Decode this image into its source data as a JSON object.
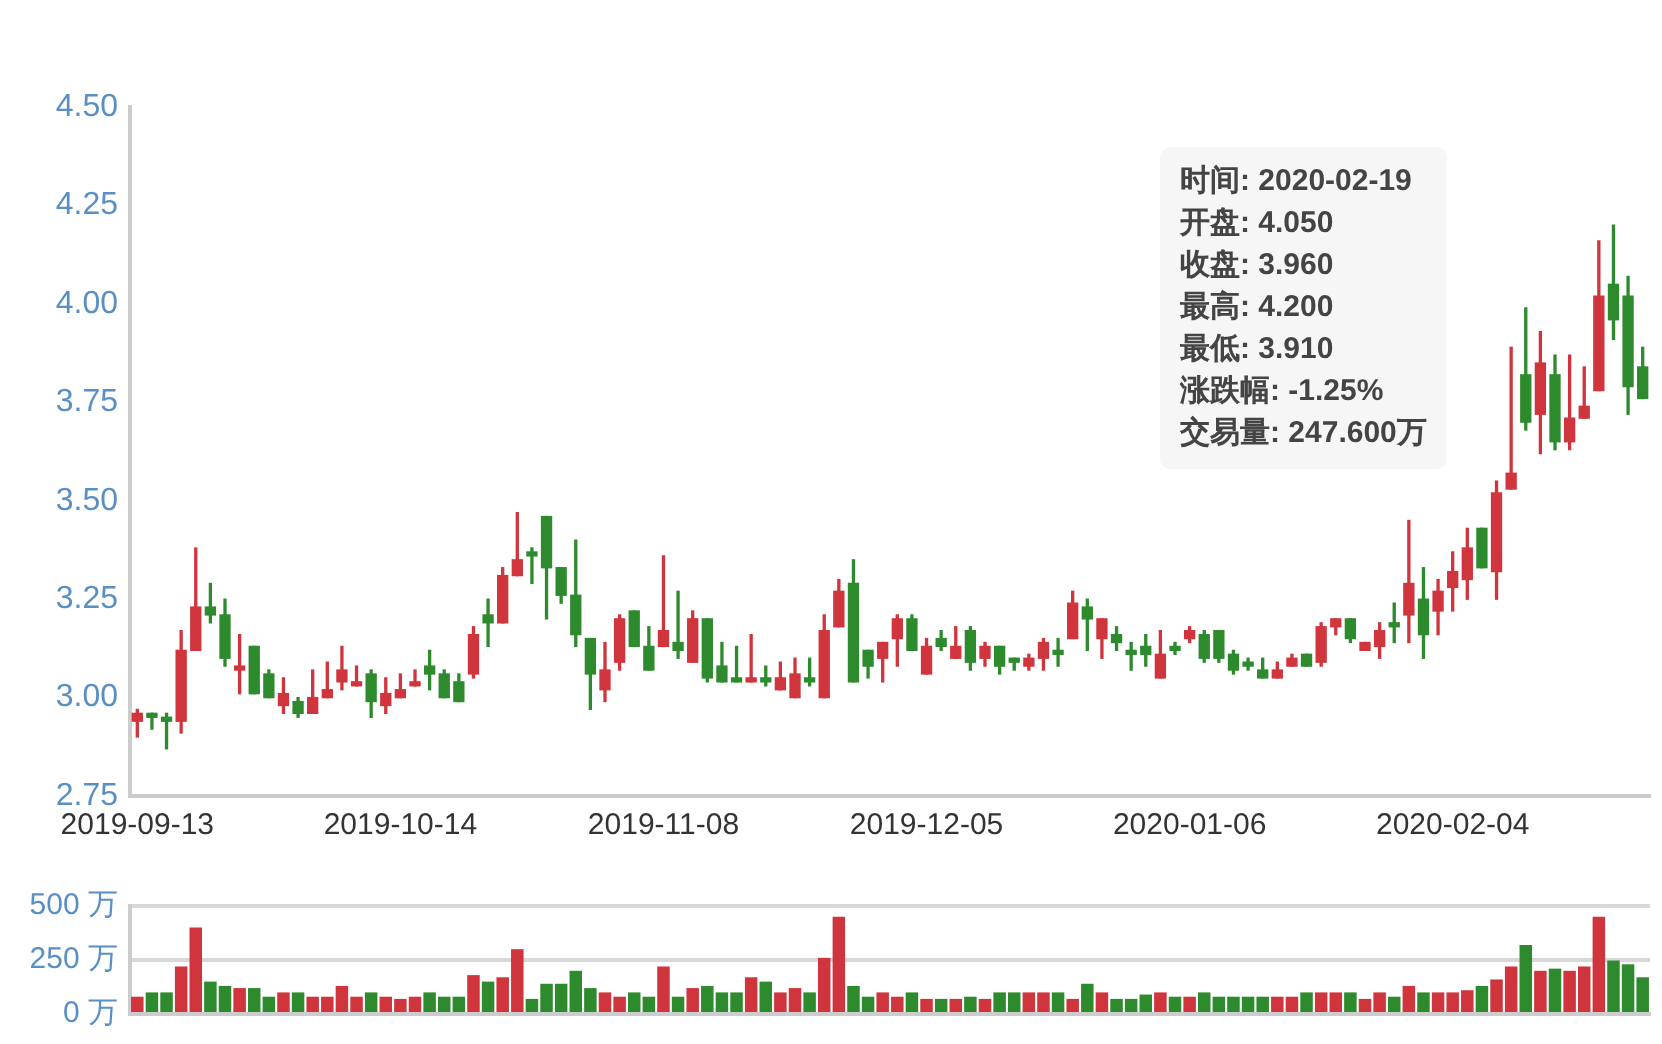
{
  "chart_data": [
    {
      "type": "candlestick",
      "categories": [
        "2019-09-13",
        null,
        null,
        null,
        null,
        null,
        null,
        null,
        null,
        null,
        null,
        null,
        null,
        null,
        null,
        null,
        null,
        null,
        "2019-10-14",
        null,
        null,
        null,
        null,
        null,
        null,
        null,
        null,
        null,
        null,
        null,
        null,
        null,
        null,
        null,
        null,
        null,
        "2019-11-08",
        null,
        null,
        null,
        null,
        null,
        null,
        null,
        null,
        null,
        null,
        null,
        null,
        null,
        null,
        null,
        null,
        null,
        "2019-12-05",
        null,
        null,
        null,
        null,
        null,
        null,
        null,
        null,
        null,
        null,
        null,
        null,
        null,
        null,
        null,
        null,
        null,
        "2020-01-06",
        null,
        null,
        null,
        null,
        null,
        null,
        null,
        null,
        null,
        null,
        null,
        null,
        null,
        null,
        null,
        null,
        null,
        "2020-02-04",
        null,
        null,
        null,
        null,
        null,
        null,
        null,
        null,
        null,
        null,
        null,
        null,
        null
      ],
      "ohlc": [
        [
          2.94,
          2.97,
          2.9,
          2.96
        ],
        [
          2.96,
          2.96,
          2.92,
          2.95
        ],
        [
          2.95,
          2.96,
          2.87,
          2.94
        ],
        [
          2.94,
          3.17,
          2.91,
          3.12
        ],
        [
          3.12,
          3.38,
          3.12,
          3.23
        ],
        [
          3.23,
          3.29,
          3.19,
          3.21
        ],
        [
          3.21,
          3.25,
          3.08,
          3.1
        ],
        [
          3.07,
          3.16,
          3.01,
          3.08
        ],
        [
          3.13,
          3.13,
          3.01,
          3.01
        ],
        [
          3.06,
          3.07,
          3.0,
          3.0
        ],
        [
          2.98,
          3.05,
          2.96,
          3.01
        ],
        [
          2.99,
          3.0,
          2.95,
          2.96
        ],
        [
          2.96,
          3.07,
          2.96,
          3.0
        ],
        [
          3.0,
          3.09,
          3.0,
          3.02
        ],
        [
          3.04,
          3.13,
          3.02,
          3.07
        ],
        [
          3.03,
          3.08,
          3.03,
          3.04
        ],
        [
          3.06,
          3.07,
          2.95,
          2.99
        ],
        [
          2.98,
          3.05,
          2.96,
          3.01
        ],
        [
          3.0,
          3.06,
          3.0,
          3.02
        ],
        [
          3.03,
          3.07,
          3.03,
          3.04
        ],
        [
          3.08,
          3.12,
          3.02,
          3.06
        ],
        [
          3.06,
          3.07,
          3.0,
          3.0
        ],
        [
          3.04,
          3.06,
          2.99,
          2.99
        ],
        [
          3.06,
          3.18,
          3.05,
          3.16
        ],
        [
          3.21,
          3.25,
          3.13,
          3.19
        ],
        [
          3.19,
          3.33,
          3.19,
          3.31
        ],
        [
          3.31,
          3.47,
          3.31,
          3.35
        ],
        [
          3.37,
          3.38,
          3.29,
          3.36
        ],
        [
          3.46,
          3.46,
          3.2,
          3.33
        ],
        [
          3.33,
          3.33,
          3.24,
          3.26
        ],
        [
          3.26,
          3.4,
          3.13,
          3.16
        ],
        [
          3.15,
          3.15,
          2.97,
          3.06
        ],
        [
          3.02,
          3.14,
          2.99,
          3.07
        ],
        [
          3.09,
          3.21,
          3.07,
          3.2
        ],
        [
          3.22,
          3.22,
          3.13,
          3.13
        ],
        [
          3.13,
          3.18,
          3.07,
          3.07
        ],
        [
          3.13,
          3.36,
          3.13,
          3.17
        ],
        [
          3.14,
          3.27,
          3.1,
          3.12
        ],
        [
          3.09,
          3.22,
          3.09,
          3.2
        ],
        [
          3.2,
          3.2,
          3.04,
          3.05
        ],
        [
          3.08,
          3.14,
          3.04,
          3.04
        ],
        [
          3.05,
          3.13,
          3.04,
          3.04
        ],
        [
          3.04,
          3.16,
          3.04,
          3.05
        ],
        [
          3.05,
          3.08,
          3.03,
          3.04
        ],
        [
          3.02,
          3.09,
          3.02,
          3.05
        ],
        [
          3.0,
          3.1,
          3.0,
          3.06
        ],
        [
          3.05,
          3.1,
          3.03,
          3.04
        ],
        [
          3.0,
          3.21,
          3.0,
          3.17
        ],
        [
          3.18,
          3.3,
          3.18,
          3.27
        ],
        [
          3.29,
          3.35,
          3.04,
          3.04
        ],
        [
          3.12,
          3.12,
          3.05,
          3.08
        ],
        [
          3.1,
          3.14,
          3.04,
          3.14
        ],
        [
          3.15,
          3.21,
          3.08,
          3.2
        ],
        [
          3.2,
          3.21,
          3.12,
          3.12
        ],
        [
          3.06,
          3.15,
          3.06,
          3.13
        ],
        [
          3.15,
          3.17,
          3.12,
          3.13
        ],
        [
          3.1,
          3.18,
          3.1,
          3.13
        ],
        [
          3.17,
          3.18,
          3.07,
          3.09
        ],
        [
          3.1,
          3.14,
          3.08,
          3.13
        ],
        [
          3.13,
          3.13,
          3.06,
          3.08
        ],
        [
          3.1,
          3.1,
          3.07,
          3.09
        ],
        [
          3.08,
          3.11,
          3.07,
          3.1
        ],
        [
          3.1,
          3.15,
          3.07,
          3.14
        ],
        [
          3.12,
          3.15,
          3.08,
          3.11
        ],
        [
          3.15,
          3.27,
          3.15,
          3.24
        ],
        [
          3.23,
          3.25,
          3.12,
          3.2
        ],
        [
          3.15,
          3.2,
          3.1,
          3.2
        ],
        [
          3.16,
          3.18,
          3.12,
          3.14
        ],
        [
          3.12,
          3.14,
          3.07,
          3.11
        ],
        [
          3.13,
          3.16,
          3.08,
          3.11
        ],
        [
          3.05,
          3.17,
          3.05,
          3.11
        ],
        [
          3.13,
          3.14,
          3.11,
          3.12
        ],
        [
          3.15,
          3.18,
          3.14,
          3.17
        ],
        [
          3.16,
          3.17,
          3.09,
          3.1
        ],
        [
          3.17,
          3.17,
          3.09,
          3.1
        ],
        [
          3.11,
          3.12,
          3.06,
          3.07
        ],
        [
          3.09,
          3.1,
          3.07,
          3.08
        ],
        [
          3.07,
          3.1,
          3.05,
          3.05
        ],
        [
          3.05,
          3.09,
          3.05,
          3.07
        ],
        [
          3.08,
          3.11,
          3.08,
          3.1
        ],
        [
          3.11,
          3.11,
          3.08,
          3.08
        ],
        [
          3.09,
          3.19,
          3.08,
          3.18
        ],
        [
          3.18,
          3.2,
          3.16,
          3.2
        ],
        [
          3.2,
          3.2,
          3.14,
          3.15
        ],
        [
          3.12,
          3.14,
          3.12,
          3.14
        ],
        [
          3.13,
          3.19,
          3.1,
          3.17
        ],
        [
          3.19,
          3.24,
          3.14,
          3.18
        ],
        [
          3.21,
          3.45,
          3.14,
          3.29
        ],
        [
          3.25,
          3.33,
          3.1,
          3.16
        ],
        [
          3.22,
          3.3,
          3.16,
          3.27
        ],
        [
          3.28,
          3.37,
          3.22,
          3.32
        ],
        [
          3.3,
          3.43,
          3.25,
          3.38
        ],
        [
          3.43,
          3.43,
          3.33,
          3.33
        ],
        [
          3.32,
          3.55,
          3.25,
          3.52
        ],
        [
          3.53,
          3.89,
          3.53,
          3.57
        ],
        [
          3.82,
          3.99,
          3.68,
          3.7
        ],
        [
          3.72,
          3.93,
          3.62,
          3.85
        ],
        [
          3.82,
          3.87,
          3.63,
          3.65
        ],
        [
          3.65,
          3.87,
          3.63,
          3.71
        ],
        [
          3.71,
          3.84,
          3.71,
          3.74
        ],
        [
          3.78,
          4.16,
          3.78,
          4.02
        ],
        [
          4.05,
          4.2,
          3.91,
          3.96
        ],
        [
          4.02,
          4.07,
          3.72,
          3.79
        ],
        [
          3.84,
          3.89,
          3.76,
          3.76
        ]
      ],
      "colors": [
        "#d0343c",
        "#2d8a2d",
        "#2d8a2d",
        "#d0343c",
        "#d0343c",
        "#2d8a2d",
        "#2d8a2d",
        "#d0343c",
        "#2d8a2d",
        "#2d8a2d",
        "#d0343c",
        "#2d8a2d",
        "#d0343c",
        "#d0343c",
        "#d0343c",
        "#d0343c",
        "#2d8a2d",
        "#d0343c",
        "#d0343c",
        "#d0343c",
        "#2d8a2d",
        "#2d8a2d",
        "#2d8a2d",
        "#d0343c",
        "#2d8a2d",
        "#d0343c",
        "#d0343c",
        "#2d8a2d",
        "#2d8a2d",
        "#2d8a2d",
        "#2d8a2d",
        "#2d8a2d",
        "#d0343c",
        "#d0343c",
        "#2d8a2d",
        "#2d8a2d",
        "#d0343c",
        "#2d8a2d",
        "#d0343c",
        "#2d8a2d",
        "#2d8a2d",
        "#2d8a2d",
        "#d0343c",
        "#2d8a2d",
        "#d0343c",
        "#d0343c",
        "#2d8a2d",
        "#d0343c",
        "#d0343c",
        "#2d8a2d",
        "#2d8a2d",
        "#d0343c",
        "#d0343c",
        "#2d8a2d",
        "#d0343c",
        "#2d8a2d",
        "#d0343c",
        "#2d8a2d",
        "#d0343c",
        "#2d8a2d",
        "#2d8a2d",
        "#d0343c",
        "#d0343c",
        "#2d8a2d",
        "#d0343c",
        "#2d8a2d",
        "#d0343c",
        "#2d8a2d",
        "#2d8a2d",
        "#2d8a2d",
        "#d0343c",
        "#2d8a2d",
        "#d0343c",
        "#2d8a2d",
        "#2d8a2d",
        "#2d8a2d",
        "#2d8a2d",
        "#2d8a2d",
        "#d0343c",
        "#d0343c",
        "#2d8a2d",
        "#d0343c",
        "#d0343c",
        "#2d8a2d",
        "#d0343c",
        "#d0343c",
        "#2d8a2d",
        "#d0343c",
        "#2d8a2d",
        "#d0343c",
        "#d0343c",
        "#d0343c",
        "#2d8a2d",
        "#d0343c",
        "#d0343c",
        "#2d8a2d",
        "#d0343c",
        "#2d8a2d",
        "#d0343c",
        "#d0343c",
        "#d0343c",
        "#2d8a2d",
        "#2d8a2d",
        "#2d8a2d"
      ],
      "ylim": [
        2.75,
        4.5
      ],
      "yticks": [
        2.75,
        {
          "value": 3,
          "label": "3.00"
        },
        3.25,
        {
          "value": 3.5,
          "label": "3.50"
        },
        3.75,
        {
          "value": 4,
          "label": "4.00"
        },
        4.25,
        {
          "value": 4.5,
          "label": "4.50"
        }
      ],
      "annotations": [
        "时间: 2020-02-19",
        "开盘: 4.050",
        "收盘: 3.960",
        "最高: 4.200",
        "最低: 3.910",
        "涨跌幅: -1.25%",
        "交易量: 247.600万"
      ],
      "grid": false,
      "legend": false
    },
    {
      "type": "bar",
      "categories": [
        null,
        null,
        null,
        null,
        null,
        null,
        null,
        null,
        null,
        null,
        null,
        null,
        null,
        null,
        null,
        null,
        null,
        null,
        null,
        null,
        null,
        null,
        null,
        null,
        null,
        null,
        null,
        null,
        null,
        null,
        null,
        null,
        null,
        null,
        null,
        null,
        null,
        null,
        null,
        null,
        null,
        null,
        null,
        null,
        null,
        null,
        null,
        null,
        null,
        null,
        null,
        null,
        null,
        null,
        null,
        null,
        null,
        null,
        null,
        null,
        null,
        null,
        null,
        null,
        null,
        null,
        null,
        null,
        null,
        null,
        null,
        null,
        null,
        null,
        null,
        null,
        null,
        null,
        null,
        null,
        null,
        null,
        null,
        null,
        null,
        null,
        null,
        null,
        null,
        null,
        null,
        null,
        null,
        null,
        null,
        null,
        null,
        null,
        null,
        null,
        null,
        null,
        null,
        null
      ],
      "values": [
        80,
        100,
        100,
        220,
        400,
        150,
        130,
        120,
        120,
        80,
        100,
        100,
        80,
        80,
        130,
        80,
        100,
        80,
        70,
        80,
        100,
        80,
        80,
        180,
        150,
        170,
        300,
        70,
        140,
        140,
        200,
        120,
        100,
        80,
        100,
        80,
        220,
        80,
        120,
        130,
        100,
        100,
        170,
        150,
        100,
        120,
        100,
        260,
        450,
        130,
        80,
        100,
        80,
        100,
        70,
        70,
        70,
        80,
        70,
        100,
        100,
        100,
        100,
        100,
        70,
        140,
        100,
        70,
        70,
        90,
        100,
        80,
        80,
        100,
        80,
        80,
        80,
        80,
        80,
        80,
        100,
        100,
        100,
        100,
        70,
        100,
        80,
        130,
        100,
        100,
        100,
        110,
        130,
        160,
        220,
        320,
        200,
        210,
        200,
        220,
        450,
        247.6,
        230,
        170
      ],
      "colors": [
        "#d0343c",
        "#2d8a2d",
        "#2d8a2d",
        "#d0343c",
        "#d0343c",
        "#2d8a2d",
        "#2d8a2d",
        "#d0343c",
        "#2d8a2d",
        "#2d8a2d",
        "#d0343c",
        "#2d8a2d",
        "#d0343c",
        "#d0343c",
        "#d0343c",
        "#d0343c",
        "#2d8a2d",
        "#d0343c",
        "#d0343c",
        "#d0343c",
        "#2d8a2d",
        "#2d8a2d",
        "#2d8a2d",
        "#d0343c",
        "#2d8a2d",
        "#d0343c",
        "#d0343c",
        "#2d8a2d",
        "#2d8a2d",
        "#2d8a2d",
        "#2d8a2d",
        "#2d8a2d",
        "#d0343c",
        "#d0343c",
        "#2d8a2d",
        "#2d8a2d",
        "#d0343c",
        "#2d8a2d",
        "#d0343c",
        "#2d8a2d",
        "#2d8a2d",
        "#2d8a2d",
        "#d0343c",
        "#2d8a2d",
        "#d0343c",
        "#d0343c",
        "#2d8a2d",
        "#d0343c",
        "#d0343c",
        "#2d8a2d",
        "#2d8a2d",
        "#d0343c",
        "#d0343c",
        "#2d8a2d",
        "#d0343c",
        "#2d8a2d",
        "#d0343c",
        "#2d8a2d",
        "#d0343c",
        "#2d8a2d",
        "#2d8a2d",
        "#d0343c",
        "#d0343c",
        "#2d8a2d",
        "#d0343c",
        "#2d8a2d",
        "#d0343c",
        "#2d8a2d",
        "#2d8a2d",
        "#2d8a2d",
        "#d0343c",
        "#2d8a2d",
        "#d0343c",
        "#2d8a2d",
        "#2d8a2d",
        "#2d8a2d",
        "#2d8a2d",
        "#2d8a2d",
        "#d0343c",
        "#d0343c",
        "#2d8a2d",
        "#d0343c",
        "#d0343c",
        "#2d8a2d",
        "#d0343c",
        "#d0343c",
        "#2d8a2d",
        "#d0343c",
        "#2d8a2d",
        "#d0343c",
        "#d0343c",
        "#d0343c",
        "#2d8a2d",
        "#d0343c",
        "#d0343c",
        "#2d8a2d",
        "#d0343c",
        "#2d8a2d",
        "#d0343c",
        "#d0343c",
        "#d0343c",
        "#2d8a2d",
        "#2d8a2d",
        "#2d8a2d"
      ],
      "ylim": [
        0,
        500
      ],
      "yticks": [
        {
          "value": 0,
          "label": "0 万"
        },
        {
          "value": 250,
          "label": "250 万"
        },
        {
          "value": 500,
          "label": "500 万"
        }
      ],
      "grid": "y",
      "tick_labels": "y",
      "legend": false
    }
  ]
}
